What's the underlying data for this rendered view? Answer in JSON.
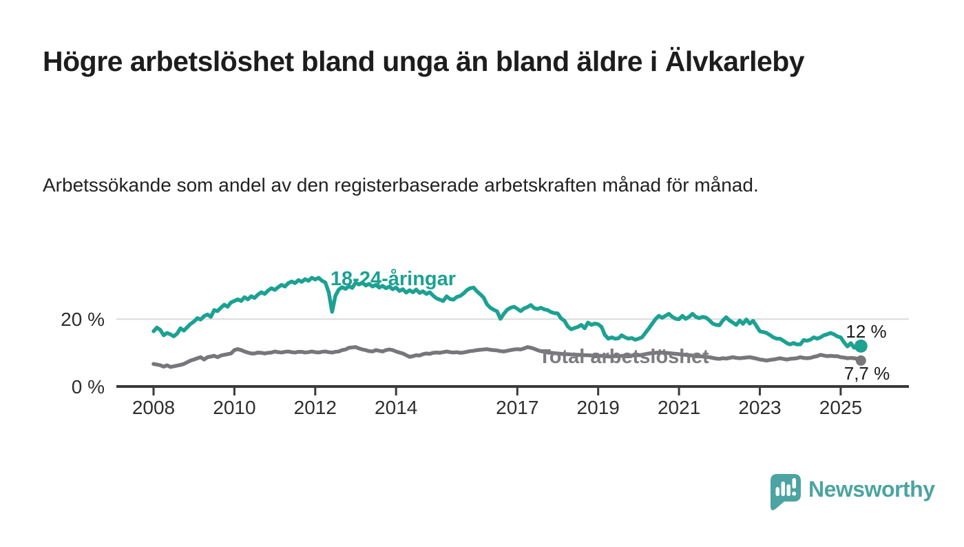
{
  "title": "Högre arbetslöshet bland unga än bland äldre i Älvkarleby",
  "subtitle": "Arbetssökande som andel av den registerbaserade arbetskraften månad för månad.",
  "brand": {
    "name": "Newsworthy",
    "color": "#4BA4A1"
  },
  "colors": {
    "youth_line": "#1CA192",
    "total_line": "#77777B",
    "total_label": "#7B7B80",
    "gridline": "#D9D9D9",
    "axis": "#3A3A3A",
    "text": "#1D1D1D"
  },
  "chart_data": {
    "type": "line",
    "unit": "%",
    "x_start_year": 2008,
    "x_step": "monthly",
    "x_end_year": 2025.5,
    "ylim": [
      0,
      34
    ],
    "grid": "single horizontal gridline at 20 %",
    "legend_position": "inline labels on lines",
    "x_tick_years": [
      2008,
      2010,
      2012,
      2014,
      2017,
      2019,
      2021,
      2023,
      2025
    ],
    "x_tick_labels": [
      "2008",
      "2010",
      "2012",
      "2014",
      "2017",
      "2019",
      "2021",
      "2023",
      "2025"
    ],
    "y_ticks": [
      20,
      0
    ],
    "y_tick_labels": [
      "20 %",
      "0 %"
    ],
    "series": [
      {
        "name": "18-24-åringar",
        "color": "#1CA192",
        "end_label": "12 %",
        "end_value": 12,
        "values": [
          16.4,
          17.5,
          16.8,
          15.2,
          15.9,
          15.5,
          14.9,
          15.7,
          17.3,
          16.6,
          17.6,
          18.6,
          19.3,
          20.3,
          19.9,
          20.9,
          21.4,
          20.7,
          22.7,
          22.4,
          23.4,
          24.3,
          23.7,
          25.0,
          25.4,
          25.9,
          25.4,
          26.5,
          25.9,
          26.8,
          26.3,
          27.3,
          28.0,
          27.5,
          28.5,
          29.2,
          28.7,
          29.5,
          30.2,
          29.7,
          30.7,
          31.2,
          30.7,
          31.6,
          31.1,
          31.9,
          31.4,
          32.3,
          31.8,
          32.3,
          31.4,
          30.9,
          28.0,
          22.2,
          27.0,
          28.8,
          29.5,
          29.0,
          29.8,
          29.3,
          30.9,
          30.3,
          30.9,
          30.0,
          30.5,
          29.7,
          30.2,
          29.4,
          29.9,
          29.2,
          29.7,
          28.9,
          29.4,
          28.4,
          28.9,
          27.9,
          28.6,
          28.0,
          28.8,
          27.8,
          28.3,
          27.5,
          28.0,
          27.0,
          26.2,
          25.8,
          25.4,
          26.8,
          26.0,
          25.8,
          26.6,
          26.9,
          27.6,
          28.6,
          29.2,
          29.4,
          28.3,
          27.4,
          26.4,
          24.4,
          23.4,
          22.8,
          22.3,
          20.1,
          21.6,
          22.8,
          23.4,
          23.7,
          23.1,
          22.4,
          23.2,
          23.6,
          24.2,
          23.3,
          23.0,
          23.4,
          22.9,
          22.7,
          22.1,
          21.8,
          21.7,
          20.2,
          19.5,
          17.8,
          17.0,
          17.4,
          17.7,
          18.3,
          17.3,
          19.0,
          18.3,
          18.7,
          18.5,
          17.7,
          15.3,
          14.2,
          14.6,
          14.2,
          14.3,
          15.2,
          14.6,
          14.2,
          14.4,
          13.9,
          14.2,
          14.6,
          15.9,
          17.2,
          18.6,
          20.0,
          21.0,
          20.4,
          21.0,
          21.6,
          20.7,
          20.1,
          20.0,
          21.0,
          20.1,
          20.7,
          21.6,
          20.7,
          20.3,
          20.7,
          20.5,
          19.7,
          18.7,
          18.3,
          18.2,
          19.6,
          20.6,
          19.6,
          19.0,
          18.3,
          19.6,
          18.6,
          19.9,
          18.7,
          19.5,
          18.0,
          16.4,
          16.2,
          15.9,
          15.3,
          14.6,
          14.2,
          14.2,
          13.6,
          12.9,
          12.5,
          12.9,
          12.5,
          12.5,
          13.8,
          13.6,
          13.9,
          14.6,
          14.2,
          14.6,
          15.2,
          15.5,
          15.9,
          15.5,
          14.9,
          14.6,
          13.1,
          11.9,
          12.9,
          11.5,
          12.2,
          12.0
        ]
      },
      {
        "name": "Total arbetslöshet",
        "color": "#77777B",
        "end_label": "7,7 %",
        "end_value": 7.7,
        "values": [
          6.7,
          6.5,
          6.3,
          5.9,
          6.3,
          5.8,
          6.0,
          6.2,
          6.4,
          6.7,
          7.2,
          7.7,
          8.0,
          8.4,
          8.7,
          8.0,
          8.7,
          8.9,
          9.1,
          8.7,
          9.2,
          9.4,
          9.6,
          9.8,
          10.8,
          11.1,
          10.8,
          10.4,
          10.1,
          9.8,
          9.8,
          10.1,
          10.0,
          9.8,
          10.0,
          10.1,
          10.4,
          10.2,
          10.1,
          10.3,
          10.4,
          10.2,
          10.1,
          10.3,
          10.3,
          10.1,
          10.2,
          10.4,
          10.2,
          10.1,
          10.3,
          10.4,
          10.2,
          10.1,
          10.3,
          10.4,
          10.8,
          11.0,
          11.5,
          11.6,
          11.7,
          11.3,
          11.0,
          10.8,
          10.5,
          10.4,
          10.8,
          10.6,
          10.4,
          10.8,
          11.0,
          10.8,
          10.4,
          10.1,
          9.8,
          9.3,
          8.8,
          9.0,
          9.3,
          9.2,
          9.6,
          9.8,
          9.7,
          10.0,
          10.1,
          10.0,
          10.2,
          10.4,
          10.2,
          10.1,
          10.2,
          10.0,
          10.1,
          10.3,
          10.5,
          10.6,
          10.8,
          10.9,
          11.0,
          11.1,
          10.9,
          10.8,
          10.7,
          10.5,
          10.4,
          10.6,
          10.8,
          11.0,
          11.1,
          11.0,
          11.3,
          11.7,
          11.5,
          11.2,
          10.8,
          10.5,
          10.3,
          10.1,
          10.0,
          9.9,
          9.8,
          9.7,
          9.6,
          9.6,
          9.5,
          9.5,
          9.4,
          9.4,
          9.3,
          9.3,
          9.2,
          9.2,
          9.1,
          9.1,
          9.0,
          8.9,
          8.9,
          9.0,
          9.0,
          9.1,
          9.1,
          9.2,
          9.2,
          9.3,
          9.3,
          9.4,
          9.6,
          9.8,
          9.9,
          10.0,
          10.1,
          10.1,
          10.0,
          9.9,
          9.8,
          9.7,
          9.6,
          9.5,
          9.4,
          9.3,
          9.2,
          9.1,
          9.0,
          8.9,
          8.8,
          8.7,
          8.5,
          8.3,
          8.2,
          8.4,
          8.3,
          8.5,
          8.7,
          8.5,
          8.4,
          8.5,
          8.6,
          8.7,
          8.5,
          8.3,
          8.0,
          7.9,
          7.7,
          7.9,
          8.0,
          8.2,
          8.4,
          8.2,
          8.0,
          8.2,
          8.3,
          8.4,
          8.7,
          8.5,
          8.4,
          8.5,
          8.8,
          9.0,
          9.4,
          9.2,
          9.0,
          9.1,
          9.0,
          9.0,
          8.7,
          8.6,
          8.4,
          8.5,
          8.4,
          8.2,
          7.7
        ]
      }
    ]
  }
}
